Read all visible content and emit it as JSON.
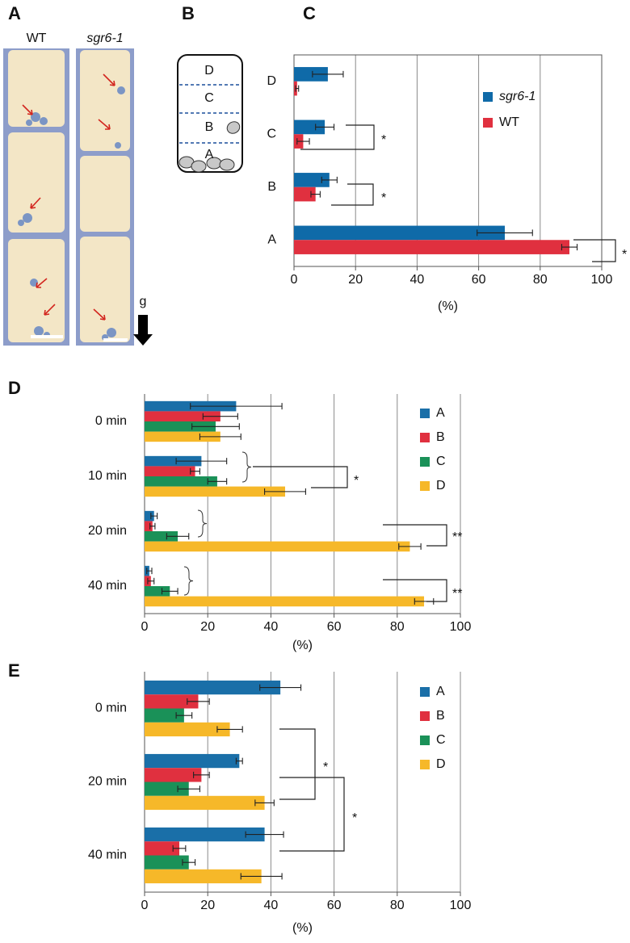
{
  "panels": {
    "A": {
      "label": "A",
      "left": "WT",
      "right": "sgr6-1",
      "gravity": "g"
    },
    "B": {
      "label": "B",
      "zones": [
        "D",
        "C",
        "B",
        "A"
      ]
    }
  },
  "chart_data": [
    {
      "type": "hbar",
      "panel_label": "C",
      "xlabel": "(%)",
      "categories": [
        "D",
        "C",
        "B",
        "A"
      ],
      "series": [
        {
          "name": "sgr6-1",
          "color": "#0f6aa8",
          "values": [
            11,
            10,
            11.5,
            68.5
          ],
          "errors": [
            5,
            3,
            2.5,
            9
          ]
        },
        {
          "name": "WT",
          "color": "#e0303f",
          "values": [
            1,
            3,
            7,
            89.5
          ],
          "errors": [
            0.5,
            2,
            1.5,
            2.5
          ]
        }
      ],
      "xlim": [
        0,
        100
      ],
      "xticks": [
        0,
        20,
        40,
        60,
        80,
        100
      ],
      "grid": true,
      "box": true,
      "annotations": [
        "*",
        "*",
        "*"
      ]
    },
    {
      "type": "hbar",
      "panel_label": "D",
      "xlabel": "(%)",
      "categories": [
        "0 min",
        "10 min",
        "20 min",
        "40 min"
      ],
      "series": [
        {
          "name": "A",
          "color": "#1a6fa8",
          "values": [
            29,
            18,
            3,
            1.5
          ],
          "errors": [
            14.5,
            8,
            1,
            0.8
          ]
        },
        {
          "name": "B",
          "color": "#e0303f",
          "values": [
            24,
            16,
            2.5,
            2
          ],
          "errors": [
            5.5,
            1.5,
            0.8,
            1
          ]
        },
        {
          "name": "C",
          "color": "#1a9158",
          "values": [
            22.5,
            23,
            10.5,
            8
          ],
          "errors": [
            7.5,
            3,
            3.5,
            2.5
          ]
        },
        {
          "name": "D",
          "color": "#f6b829",
          "values": [
            24,
            44.5,
            84,
            88.5
          ],
          "errors": [
            6.5,
            6.5,
            3.5,
            3
          ]
        }
      ],
      "xlim": [
        0,
        100
      ],
      "xticks": [
        0,
        20,
        40,
        60,
        80,
        100
      ],
      "grid": true,
      "box": false,
      "annotations": [
        "*",
        "**",
        "**"
      ]
    },
    {
      "type": "hbar",
      "panel_label": "E",
      "xlabel": "(%)",
      "categories": [
        "0 min",
        "20 min",
        "40 min"
      ],
      "series": [
        {
          "name": "A",
          "color": "#1a6fa8",
          "values": [
            43,
            30,
            38
          ],
          "errors": [
            6.5,
            1,
            6
          ]
        },
        {
          "name": "B",
          "color": "#e0303f",
          "values": [
            17,
            18,
            11
          ],
          "errors": [
            3.5,
            2.5,
            2
          ]
        },
        {
          "name": "C",
          "color": "#1a9158",
          "values": [
            12.5,
            14,
            14
          ],
          "errors": [
            2.5,
            3.5,
            2
          ]
        },
        {
          "name": "D",
          "color": "#f6b829",
          "values": [
            27,
            38,
            37
          ],
          "errors": [
            4,
            3,
            6.5
          ]
        }
      ],
      "xlim": [
        0,
        100
      ],
      "xticks": [
        0,
        20,
        40,
        60,
        80,
        100
      ],
      "grid": true,
      "box": false,
      "annotations": [
        "*",
        "*"
      ]
    }
  ]
}
